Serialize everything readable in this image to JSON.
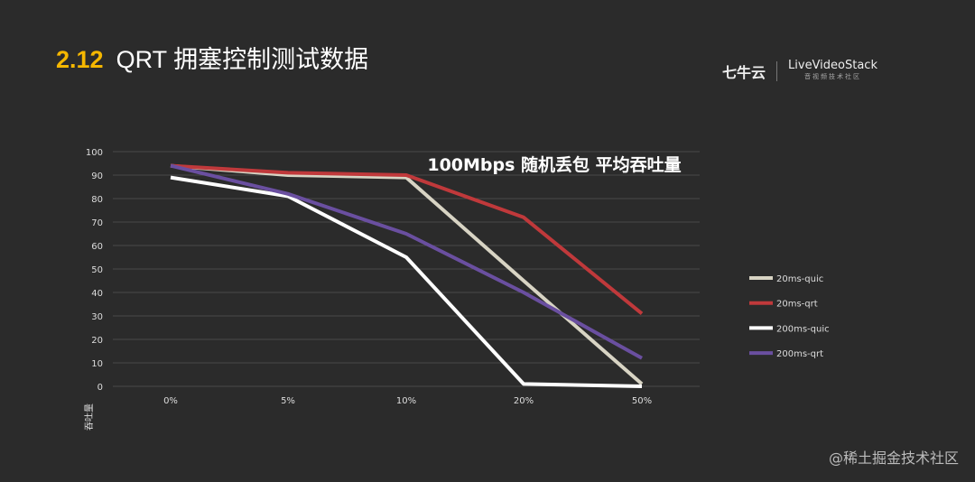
{
  "header": {
    "section_number": "2.12",
    "title": "QRT 拥塞控制测试数据"
  },
  "logo": {
    "qiniu": "七牛云",
    "livevideostack": "LiveVideoStack",
    "livevideostack_sub": "音视频技术社区"
  },
  "watermark": "@稀土掘金技术社区",
  "chart_data": {
    "type": "line",
    "title": "100Mbps 随机丢包 平均吞吐量",
    "xlabel": "",
    "ylabel": "吞吐量",
    "categories": [
      "0%",
      "5%",
      "10%",
      "20%",
      "50%"
    ],
    "ylim": [
      0,
      100
    ],
    "yticks": [
      "0",
      "10",
      "20",
      "30",
      "40",
      "50",
      "60",
      "70",
      "80",
      "90",
      "100"
    ],
    "grid": true,
    "legend": "right",
    "series": [
      {
        "name": "20ms-quic",
        "color": "#d8d4c4",
        "values": [
          94,
          90,
          89,
          45,
          1
        ]
      },
      {
        "name": "20ms-qrt",
        "color": "#c0393b",
        "values": [
          94,
          91,
          90,
          72,
          31
        ]
      },
      {
        "name": "200ms-quic",
        "color": "#ffffff",
        "values": [
          89,
          81,
          55,
          1,
          0
        ]
      },
      {
        "name": "200ms-qrt",
        "color": "#6a4fa0",
        "values": [
          94,
          82,
          65,
          40,
          12
        ]
      }
    ]
  }
}
